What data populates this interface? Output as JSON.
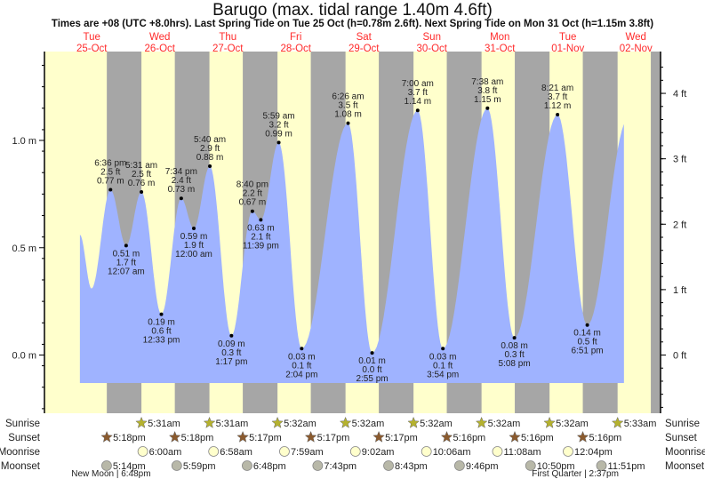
{
  "header": {
    "title": "Barugo (max. tidal range 1.40m 4.6ft)",
    "subtitle": "Times are +08 (UTC +8.0hrs). Last Spring Tide on Tue 25 Oct (h=0.78m 2.6ft). Next Spring Tide on Mon 31 Oct (h=1.15m 3.8ft)"
  },
  "colors": {
    "day": "#ffffcc",
    "night": "#a6a6a6",
    "water": "#9fb3ff",
    "day_label": "#ff2a2a",
    "sunrise": "#b5b22e",
    "sunset": "#8a5a2e",
    "moonrise": "#ffffcc",
    "moonset": "#b8b8a8"
  },
  "chart_data": {
    "type": "area",
    "title": "Barugo (max. tidal range 1.40m 4.6ft)",
    "days": [
      {
        "dow": "Tue",
        "date": "25-Oct"
      },
      {
        "dow": "Wed",
        "date": "26-Oct"
      },
      {
        "dow": "Thu",
        "date": "27-Oct"
      },
      {
        "dow": "Fri",
        "date": "28-Oct"
      },
      {
        "dow": "Sat",
        "date": "29-Oct"
      },
      {
        "dow": "Sun",
        "date": "30-Oct"
      },
      {
        "dow": "Mon",
        "date": "31-Oct"
      },
      {
        "dow": "Tue",
        "date": "01-Nov"
      },
      {
        "dow": "Wed",
        "date": "02-Nov"
      }
    ],
    "left_axis": {
      "unit": "m",
      "ticks": [
        {
          "v": 0.0,
          "label": "0.0 m"
        },
        {
          "v": 0.5,
          "label": "0.5 m"
        },
        {
          "v": 1.0,
          "label": "1.0 m"
        }
      ]
    },
    "right_axis": {
      "unit": "ft",
      "ticks": [
        {
          "v": 0,
          "label": "0 ft"
        },
        {
          "v": 1,
          "label": "1 ft"
        },
        {
          "v": 2,
          "label": "2 ft"
        },
        {
          "v": 3,
          "label": "3 ft"
        },
        {
          "v": 4,
          "label": "4 ft"
        }
      ]
    },
    "ylim_m": [
      -0.27,
      1.4
    ],
    "tides": [
      {
        "day": 0,
        "time": "6:36 pm",
        "m": "0.77 m",
        "ft": "2.5 ft",
        "v": 0.77,
        "type": "high"
      },
      {
        "day": 1,
        "time": "12:07 am",
        "m": "0.51 m",
        "ft": "1.7 ft",
        "v": 0.51,
        "type": "low"
      },
      {
        "day": 1,
        "time": "5:31 am",
        "m": "0.76 m",
        "ft": "2.5 ft",
        "v": 0.76,
        "type": "high"
      },
      {
        "day": 1,
        "time": "12:33 pm",
        "m": "0.19 m",
        "ft": "0.6 ft",
        "v": 0.19,
        "type": "low"
      },
      {
        "day": 1,
        "time": "7:34 pm",
        "m": "0.73 m",
        "ft": "2.4 ft",
        "v": 0.73,
        "type": "high"
      },
      {
        "day": 2,
        "time": "12:00 am",
        "m": "0.59 m",
        "ft": "1.9 ft",
        "v": 0.59,
        "type": "low"
      },
      {
        "day": 2,
        "time": "5:40 am",
        "m": "0.88 m",
        "ft": "2.9 ft",
        "v": 0.88,
        "type": "high"
      },
      {
        "day": 2,
        "time": "1:17 pm",
        "m": "0.09 m",
        "ft": "0.3 ft",
        "v": 0.09,
        "type": "low"
      },
      {
        "day": 2,
        "time": "8:40 pm",
        "m": "0.67 m",
        "ft": "2.2 ft",
        "v": 0.67,
        "type": "high"
      },
      {
        "day": 2,
        "time": "11:39 pm",
        "m": "0.63 m",
        "ft": "2.1 ft",
        "v": 0.63,
        "type": "low"
      },
      {
        "day": 3,
        "time": "5:59 am",
        "m": "0.99 m",
        "ft": "3.2 ft",
        "v": 0.99,
        "type": "high"
      },
      {
        "day": 3,
        "time": "2:04 pm",
        "m": "0.03 m",
        "ft": "0.1 ft",
        "v": 0.03,
        "type": "low"
      },
      {
        "day": 4,
        "time": "6:26 am",
        "m": "1.08 m",
        "ft": "3.5 ft",
        "v": 1.08,
        "type": "high"
      },
      {
        "day": 4,
        "time": "2:55 pm",
        "m": "0.01 m",
        "ft": "0.0 ft",
        "v": 0.01,
        "type": "low"
      },
      {
        "day": 5,
        "time": "7:00 am",
        "m": "1.14 m",
        "ft": "3.7 ft",
        "v": 1.14,
        "type": "high"
      },
      {
        "day": 5,
        "time": "3:54 pm",
        "m": "0.03 m",
        "ft": "0.1 ft",
        "v": 0.03,
        "type": "low"
      },
      {
        "day": 6,
        "time": "7:38 am",
        "m": "1.15 m",
        "ft": "3.8 ft",
        "v": 1.15,
        "type": "high"
      },
      {
        "day": 6,
        "time": "5:08 pm",
        "m": "0.08 m",
        "ft": "0.3 ft",
        "v": 0.08,
        "type": "low"
      },
      {
        "day": 7,
        "time": "8:21 am",
        "m": "1.12 m",
        "ft": "3.7 ft",
        "v": 1.12,
        "type": "high"
      },
      {
        "day": 7,
        "time": "6:51 pm",
        "m": "0.14 m",
        "ft": "0.5 ft",
        "v": 0.14,
        "type": "low"
      }
    ],
    "curve_start": {
      "day": 0,
      "hour": 7.8,
      "v": 0.56
    },
    "curve_first_low": {
      "day": 0,
      "hour": 11.9,
      "v": 0.31
    },
    "curve_end": {
      "day": 8,
      "hour": 7.8,
      "next_peak_hour": 9.2,
      "next_peak_v": 1.1
    }
  },
  "almanac": {
    "labels": {
      "sunrise": "Sunrise",
      "sunset": "Sunset",
      "moonrise": "Moonrise",
      "moonset": "Moonset"
    },
    "sunrise": [
      {
        "day": 1,
        "time": "5:31am"
      },
      {
        "day": 2,
        "time": "5:31am"
      },
      {
        "day": 3,
        "time": "5:32am"
      },
      {
        "day": 4,
        "time": "5:32am"
      },
      {
        "day": 5,
        "time": "5:32am"
      },
      {
        "day": 6,
        "time": "5:32am"
      },
      {
        "day": 7,
        "time": "5:32am"
      },
      {
        "day": 8,
        "time": "5:33am"
      }
    ],
    "sunset": [
      {
        "day": 0,
        "time": "5:18pm"
      },
      {
        "day": 1,
        "time": "5:18pm"
      },
      {
        "day": 2,
        "time": "5:17pm"
      },
      {
        "day": 3,
        "time": "5:17pm"
      },
      {
        "day": 4,
        "time": "5:17pm"
      },
      {
        "day": 5,
        "time": "5:16pm"
      },
      {
        "day": 6,
        "time": "5:16pm"
      },
      {
        "day": 7,
        "time": "5:16pm"
      }
    ],
    "moonrise": [
      {
        "day": 1,
        "time": "6:00am"
      },
      {
        "day": 2,
        "time": "6:58am"
      },
      {
        "day": 3,
        "time": "7:59am"
      },
      {
        "day": 4,
        "time": "9:02am"
      },
      {
        "day": 5,
        "time": "10:06am"
      },
      {
        "day": 6,
        "time": "11:08am"
      },
      {
        "day": 7,
        "time": "12:04pm"
      }
    ],
    "moonset": [
      {
        "day": 0,
        "time": "5:14pm"
      },
      {
        "day": 1,
        "time": "5:59pm"
      },
      {
        "day": 2,
        "time": "6:48pm"
      },
      {
        "day": 3,
        "time": "7:43pm"
      },
      {
        "day": 4,
        "time": "8:43pm"
      },
      {
        "day": 5,
        "time": "9:46pm"
      },
      {
        "day": 6,
        "time": "10:50pm"
      },
      {
        "day": 7,
        "time": "11:51pm"
      }
    ],
    "phases": [
      {
        "day": 0,
        "time": "6:48pm",
        "label": "New Moon | 6:48pm"
      },
      {
        "day": 7,
        "time": "2:37pm",
        "label": "First Quarter | 2:37pm"
      }
    ]
  }
}
